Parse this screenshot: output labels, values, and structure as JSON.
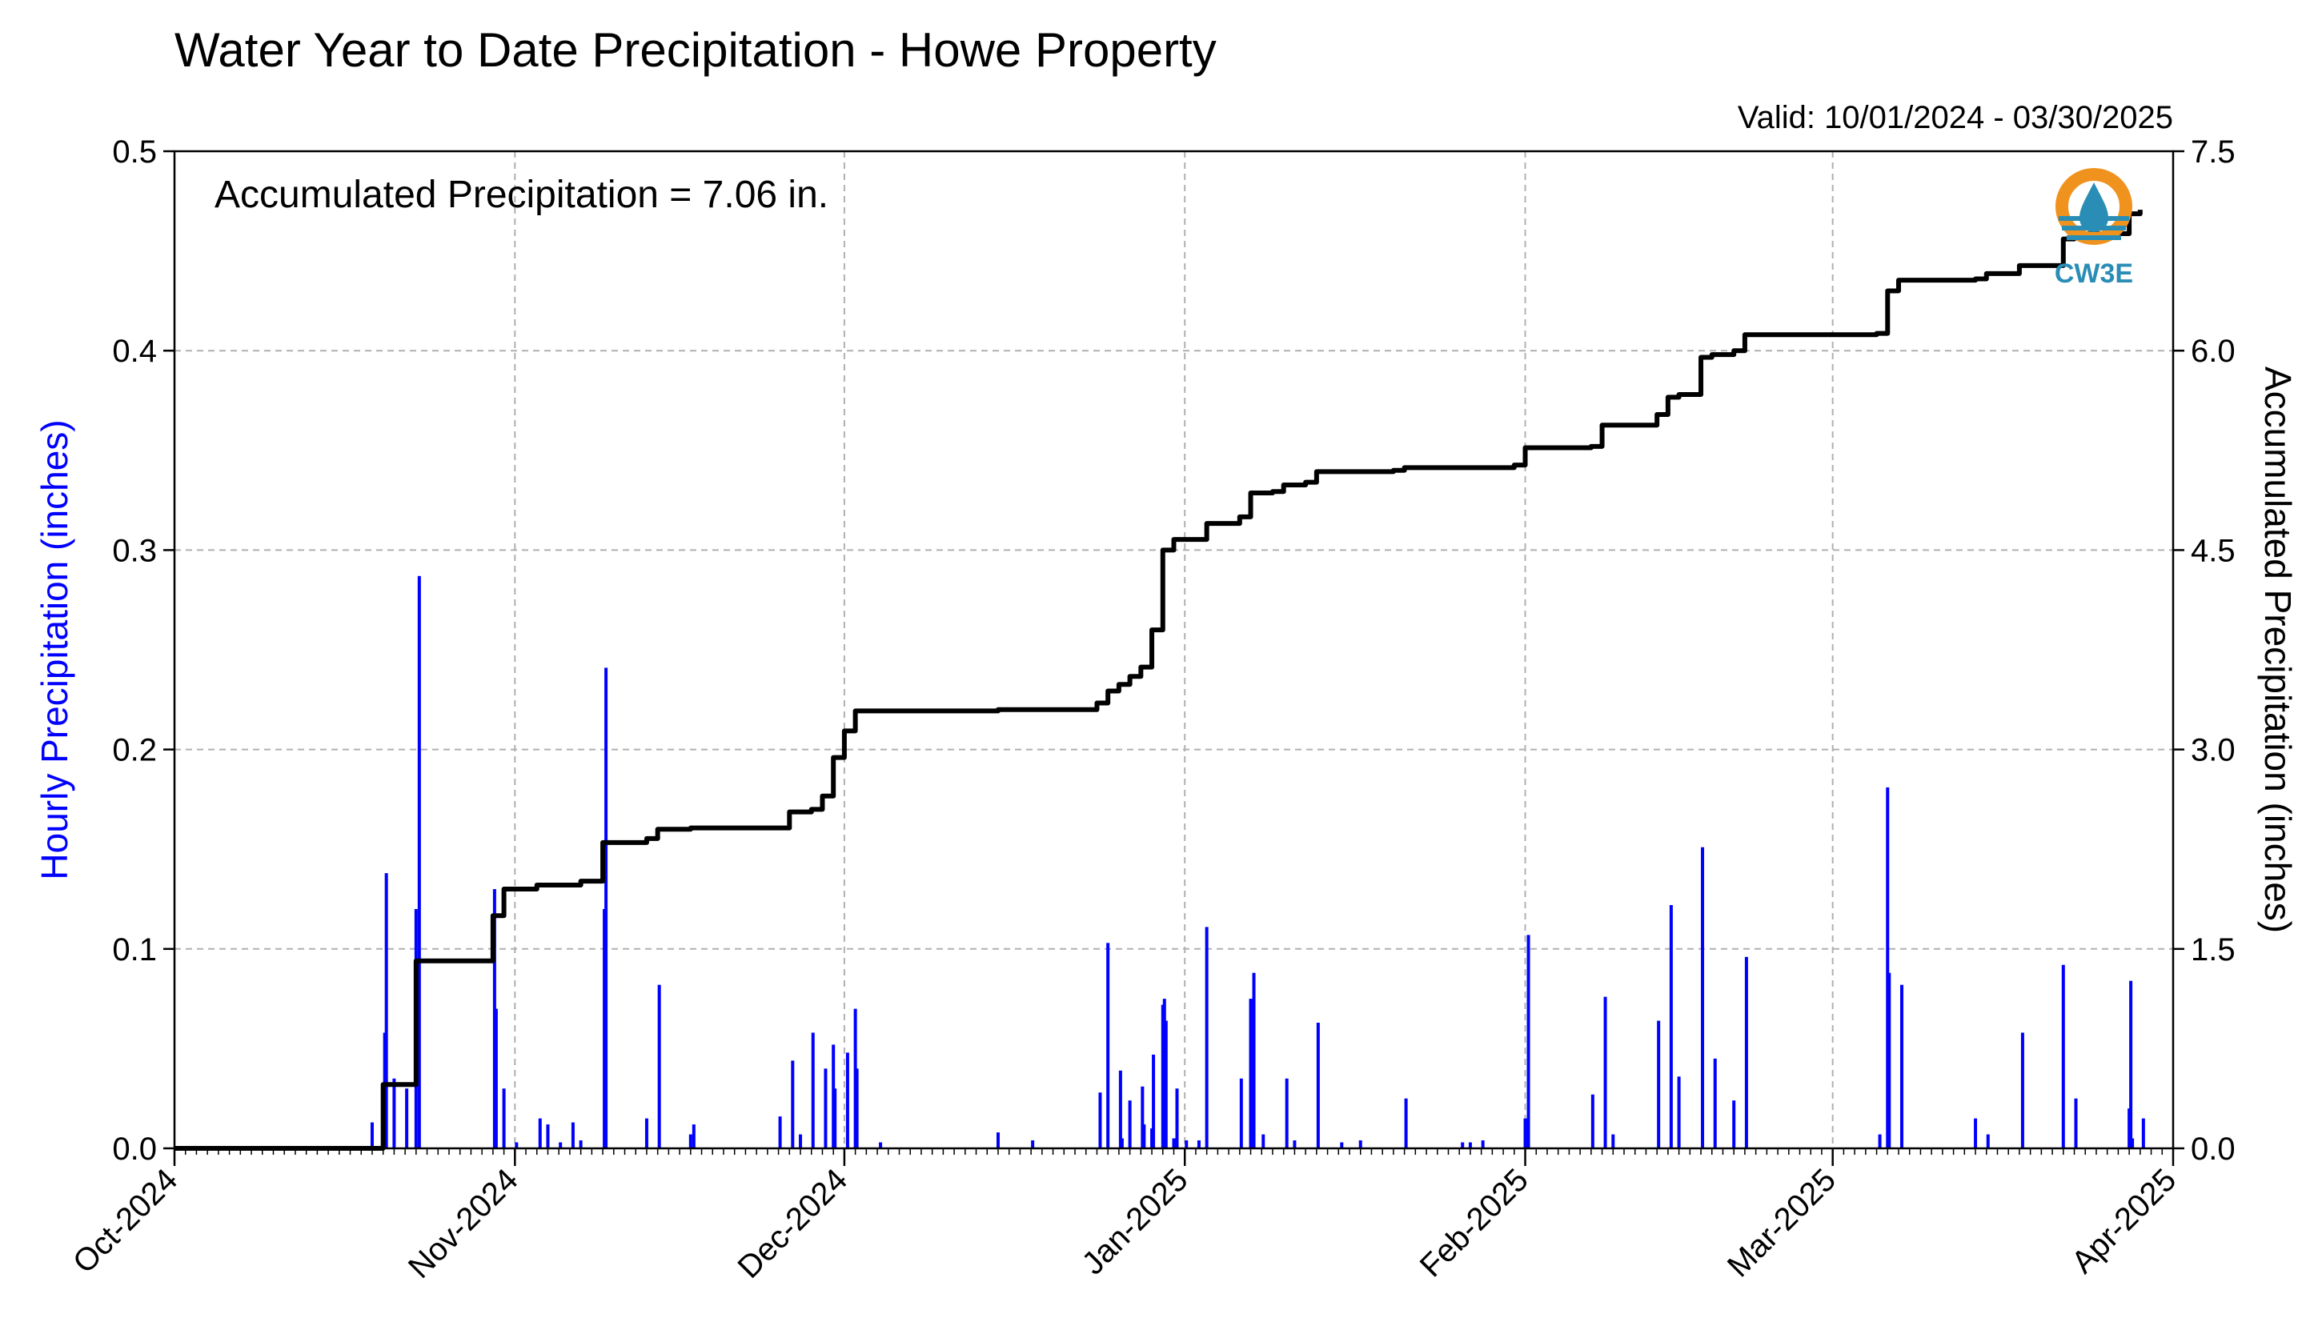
{
  "chart_data": {
    "type": "bar+line",
    "title": "Water Year to Date Precipitation - Howe Property",
    "valid_label": "Valid: 10/01/2024 - 03/30/2025",
    "annotation": "Accumulated Precipitation = 7.06 in.",
    "left_axis": {
      "label": "Hourly Precipitation (inches)",
      "range": [
        0,
        0.5
      ],
      "ticks": [
        "0.0",
        "0.1",
        "0.2",
        "0.3",
        "0.4",
        "0.5"
      ],
      "color": "#0000ff"
    },
    "right_axis": {
      "label": "Accumulated Precipitation (inches)",
      "range": [
        0,
        7.5
      ],
      "ticks": [
        "0.0",
        "1.5",
        "3.0",
        "4.5",
        "6.0",
        "7.5"
      ],
      "color": "#000000"
    },
    "x_axis": {
      "range": [
        "2024-10-01",
        "2025-04-01"
      ],
      "ticks": [
        "Oct-2024",
        "Nov-2024",
        "Dec-2024",
        "Jan-2025",
        "Feb-2025",
        "Mar-2025",
        "Apr-2025"
      ]
    },
    "grid": true,
    "logo": {
      "text": "CW3E",
      "colors": {
        "ring": "#f0931e",
        "drop": "#2a8db5"
      }
    },
    "series": [
      {
        "type": "bar",
        "color": "#0000ff",
        "points": [
          [
            "2024-10-19",
            0.013
          ],
          [
            "2024-10-20",
            0.058
          ],
          [
            "2024-10-20",
            0.138
          ],
          [
            "2024-10-21",
            0.035
          ],
          [
            "2024-10-22",
            0.03
          ],
          [
            "2024-10-23",
            0.287
          ],
          [
            "2024-10-23",
            0.12
          ],
          [
            "2024-10-30",
            0.13
          ],
          [
            "2024-10-30",
            0.07
          ],
          [
            "2024-10-31",
            0.03
          ],
          [
            "2024-11-01",
            0.003
          ],
          [
            "2024-11-03",
            0.015
          ],
          [
            "2024-11-04",
            0.012
          ],
          [
            "2024-11-05",
            0.003
          ],
          [
            "2024-11-06",
            0.013
          ],
          [
            "2024-11-07",
            0.004
          ],
          [
            "2024-11-09",
            0.12
          ],
          [
            "2024-11-09",
            0.241
          ],
          [
            "2024-11-13",
            0.015
          ],
          [
            "2024-11-14",
            0.082
          ],
          [
            "2024-11-17",
            0.012
          ],
          [
            "2024-11-17",
            0.007
          ],
          [
            "2024-11-25",
            0.016
          ],
          [
            "2024-11-26",
            0.044
          ],
          [
            "2024-11-27",
            0.007
          ],
          [
            "2024-11-28",
            0.058
          ],
          [
            "2024-11-29",
            0.04
          ],
          [
            "2024-11-30",
            0.052
          ],
          [
            "2024-11-30",
            0.03
          ],
          [
            "2024-12-01",
            0.048
          ],
          [
            "2024-12-02",
            0.07
          ],
          [
            "2024-12-02",
            0.04
          ],
          [
            "2024-12-04",
            0.003
          ],
          [
            "2024-12-15",
            0.008
          ],
          [
            "2024-12-18",
            0.004
          ],
          [
            "2024-12-24",
            0.028
          ],
          [
            "2024-12-25",
            0.103
          ],
          [
            "2024-12-26",
            0.039
          ],
          [
            "2024-12-26",
            0.005
          ],
          [
            "2024-12-27",
            0.024
          ],
          [
            "2024-12-28",
            0.031
          ],
          [
            "2024-12-28",
            0.012
          ],
          [
            "2024-12-29",
            0.01
          ],
          [
            "2024-12-29",
            0.047
          ],
          [
            "2024-12-30",
            0.064
          ],
          [
            "2024-12-30",
            0.072
          ],
          [
            "2024-12-30",
            0.075
          ],
          [
            "2024-12-31",
            0.03
          ],
          [
            "2024-12-31",
            0.005
          ],
          [
            "2025-01-01",
            0.004
          ],
          [
            "2025-01-02",
            0.004
          ],
          [
            "2025-01-03",
            0.111
          ],
          [
            "2025-01-06",
            0.035
          ],
          [
            "2025-01-07",
            0.088
          ],
          [
            "2025-01-07",
            0.075
          ],
          [
            "2025-01-08",
            0.007
          ],
          [
            "2025-01-10",
            0.035
          ],
          [
            "2025-01-11",
            0.004
          ],
          [
            "2025-01-13",
            0.063
          ],
          [
            "2025-01-15",
            0.003
          ],
          [
            "2025-01-17",
            0.004
          ],
          [
            "2025-01-21",
            0.025
          ],
          [
            "2025-01-26",
            0.003
          ],
          [
            "2025-01-27",
            0.003
          ],
          [
            "2025-01-28",
            0.004
          ],
          [
            "2025-02-01",
            0.107
          ],
          [
            "2025-02-01",
            0.015
          ],
          [
            "2025-02-07",
            0.027
          ],
          [
            "2025-02-08",
            0.076
          ],
          [
            "2025-02-09",
            0.007
          ],
          [
            "2025-02-13",
            0.064
          ],
          [
            "2025-02-14",
            0.122
          ],
          [
            "2025-02-15",
            0.036
          ],
          [
            "2025-02-17",
            0.151
          ],
          [
            "2025-02-18",
            0.045
          ],
          [
            "2025-02-20",
            0.024
          ],
          [
            "2025-02-21",
            0.096
          ],
          [
            "2025-03-05",
            0.007
          ],
          [
            "2025-03-06",
            0.181
          ],
          [
            "2025-03-06",
            0.088
          ],
          [
            "2025-03-07",
            0.082
          ],
          [
            "2025-03-14",
            0.015
          ],
          [
            "2025-03-15",
            0.007
          ],
          [
            "2025-03-18",
            0.058
          ],
          [
            "2025-03-22",
            0.092
          ],
          [
            "2025-03-23",
            0.025
          ],
          [
            "2025-03-28",
            0.005
          ],
          [
            "2025-03-28",
            0.02
          ],
          [
            "2025-03-28",
            0.084
          ],
          [
            "2025-03-29",
            0.015
          ]
        ]
      },
      {
        "type": "line",
        "axis": "right",
        "color": "#000000",
        "points": [
          [
            "2024-10-01",
            0.0
          ],
          [
            "2024-10-19",
            0.0
          ],
          [
            "2024-10-20",
            0.06
          ],
          [
            "2024-10-20",
            0.33
          ],
          [
            "2024-10-20",
            0.48
          ],
          [
            "2024-10-23",
            0.48
          ],
          [
            "2024-10-23",
            0.95
          ],
          [
            "2024-10-23",
            1.41
          ],
          [
            "2024-10-30",
            1.41
          ],
          [
            "2024-10-30",
            1.75
          ],
          [
            "2024-10-31",
            1.95
          ],
          [
            "2024-11-03",
            1.95
          ],
          [
            "2024-11-03",
            1.98
          ],
          [
            "2024-11-07",
            2.01
          ],
          [
            "2024-11-09",
            2.02
          ],
          [
            "2024-11-09",
            2.3
          ],
          [
            "2024-11-12",
            2.3
          ],
          [
            "2024-11-13",
            2.33
          ],
          [
            "2024-11-14",
            2.4
          ],
          [
            "2024-11-17",
            2.41
          ],
          [
            "2024-11-25",
            2.41
          ],
          [
            "2024-11-26",
            2.46
          ],
          [
            "2024-11-26",
            2.53
          ],
          [
            "2024-11-28",
            2.55
          ],
          [
            "2024-11-29",
            2.65
          ],
          [
            "2024-11-30",
            2.73
          ],
          [
            "2024-11-30",
            2.94
          ],
          [
            "2024-12-01",
            2.94
          ],
          [
            "2024-12-01",
            3.14
          ],
          [
            "2024-12-02",
            3.18
          ],
          [
            "2024-12-02",
            3.29
          ],
          [
            "2024-12-14",
            3.29
          ],
          [
            "2024-12-15",
            3.3
          ],
          [
            "2024-12-24",
            3.3
          ],
          [
            "2024-12-24",
            3.35
          ],
          [
            "2024-12-25",
            3.44
          ],
          [
            "2024-12-26",
            3.49
          ],
          [
            "2024-12-27",
            3.55
          ],
          [
            "2024-12-28",
            3.62
          ],
          [
            "2024-12-29",
            3.7
          ],
          [
            "2024-12-29",
            3.9
          ],
          [
            "2024-12-30",
            4.2
          ],
          [
            "2024-12-30",
            4.5
          ],
          [
            "2024-12-31",
            4.58
          ],
          [
            "2025-01-03",
            4.58
          ],
          [
            "2025-01-03",
            4.7
          ],
          [
            "2025-01-06",
            4.7
          ],
          [
            "2025-01-06",
            4.75
          ],
          [
            "2025-01-07",
            4.93
          ],
          [
            "2025-01-09",
            4.94
          ],
          [
            "2025-01-10",
            4.99
          ],
          [
            "2025-01-12",
            5.01
          ],
          [
            "2025-01-13",
            5.09
          ],
          [
            "2025-01-20",
            5.1
          ],
          [
            "2025-01-21",
            5.12
          ],
          [
            "2025-01-31",
            5.14
          ],
          [
            "2025-02-01",
            5.27
          ],
          [
            "2025-02-07",
            5.28
          ],
          [
            "2025-02-08",
            5.3
          ],
          [
            "2025-02-08",
            5.44
          ],
          [
            "2025-02-13",
            5.44
          ],
          [
            "2025-02-13",
            5.52
          ],
          [
            "2025-02-14",
            5.65
          ],
          [
            "2025-02-15",
            5.67
          ],
          [
            "2025-02-17",
            5.7
          ],
          [
            "2025-02-17",
            5.95
          ],
          [
            "2025-02-18",
            5.97
          ],
          [
            "2025-02-20",
            6.0
          ],
          [
            "2025-02-21",
            6.12
          ],
          [
            "2025-03-05",
            6.13
          ],
          [
            "2025-03-06",
            6.45
          ],
          [
            "2025-03-07",
            6.53
          ],
          [
            "2025-03-14",
            6.54
          ],
          [
            "2025-03-15",
            6.58
          ],
          [
            "2025-03-18",
            6.64
          ],
          [
            "2025-03-22",
            6.64
          ],
          [
            "2025-03-22",
            6.84
          ],
          [
            "2025-03-23",
            6.88
          ],
          [
            "2025-03-28",
            6.9
          ],
          [
            "2025-03-28",
            7.03
          ],
          [
            "2025-03-29",
            7.06
          ]
        ]
      }
    ]
  }
}
